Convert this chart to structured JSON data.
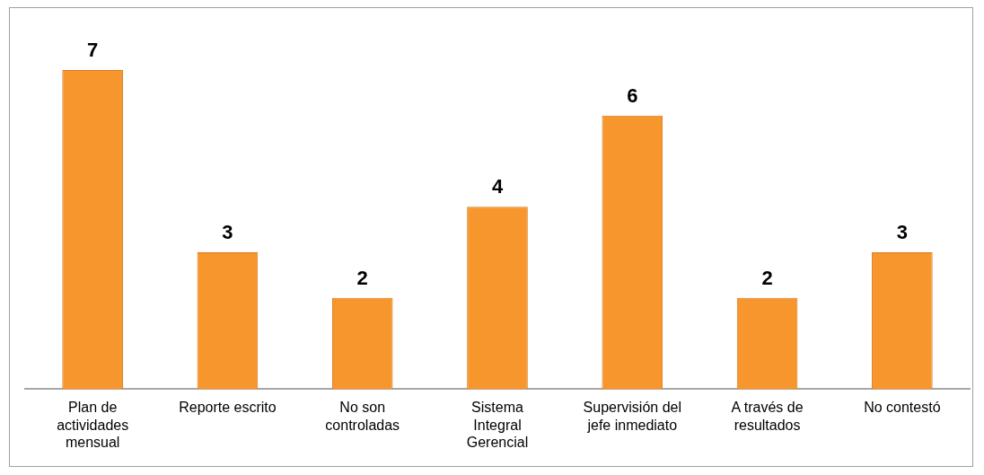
{
  "chart_data": {
    "type": "bar",
    "categories": [
      "Plan de actividades mensual",
      "Reporte escrito",
      "No son controladas",
      "Sistema Integral Gerencial",
      "Supervisión del jefe inmediato",
      "A través de resultados",
      "No contestó"
    ],
    "values": [
      7,
      3,
      2,
      4,
      6,
      2,
      3
    ],
    "color": "#f7962c",
    "data_labels": true,
    "grid": false,
    "legend": false
  }
}
